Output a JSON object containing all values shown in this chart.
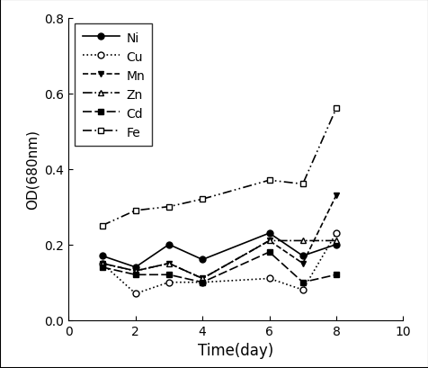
{
  "x": [
    1,
    2,
    3,
    4,
    6,
    7,
    8
  ],
  "Ni": [
    0.17,
    0.14,
    0.2,
    0.16,
    0.23,
    0.17,
    0.2
  ],
  "Cu": [
    0.15,
    0.07,
    0.1,
    0.1,
    0.11,
    0.08,
    0.23
  ],
  "Mn": [
    0.15,
    0.13,
    0.15,
    0.11,
    0.21,
    0.15,
    0.33
  ],
  "Zn": [
    0.15,
    0.13,
    0.15,
    0.11,
    0.21,
    0.21,
    0.21
  ],
  "Cd": [
    0.14,
    0.12,
    0.12,
    0.1,
    0.18,
    0.1,
    0.12
  ],
  "Fe": [
    0.25,
    0.29,
    0.3,
    0.32,
    0.37,
    0.36,
    0.56
  ],
  "xlabel": "Time(day)",
  "ylabel": "OD(680nm)",
  "xlim": [
    0,
    10
  ],
  "ylim": [
    0.0,
    0.8
  ],
  "xticks": [
    0,
    2,
    4,
    6,
    8,
    10
  ],
  "yticks": [
    0.0,
    0.2,
    0.4,
    0.6,
    0.8
  ],
  "figsize": [
    4.77,
    4.1
  ],
  "dpi": 100
}
